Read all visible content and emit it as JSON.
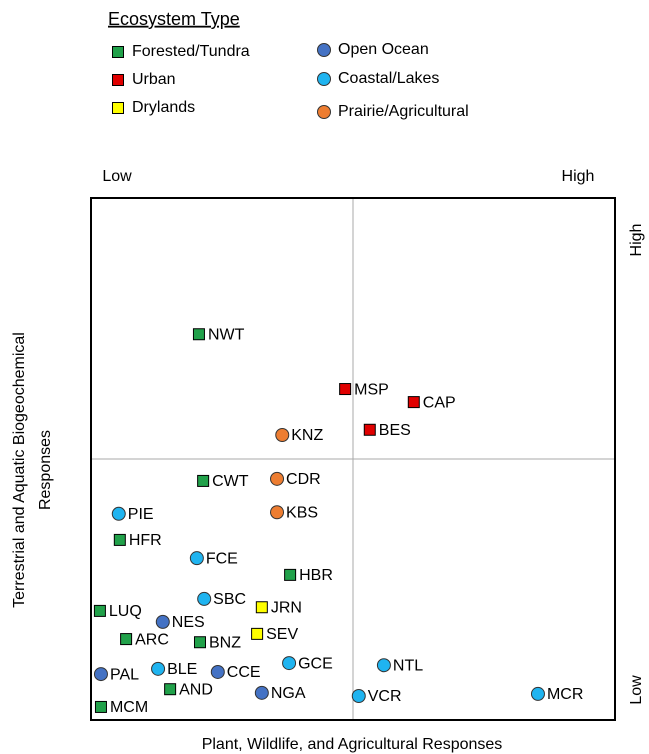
{
  "chart_data": {
    "type": "scatter",
    "legend_title": "Ecosystem Type",
    "xlabel": "Plant, Wildlife, and Agricultural Responses",
    "ylabel": [
      "Terrestrial and Aquatic Biogeochemical",
      "Responses"
    ],
    "x_low": "Low",
    "x_high": "High",
    "y_low": "Low",
    "y_high": "High",
    "xlim": [
      0,
      100
    ],
    "ylim": [
      0,
      100
    ],
    "series": [
      {
        "name": "Forested/Tundra",
        "color": "#21a14a",
        "marker": "square",
        "labels": [
          "NWT",
          "CWT",
          "HFR",
          "HBR",
          "LUQ",
          "ARC",
          "BNZ",
          "AND",
          "MCM"
        ],
        "x": [
          20.6,
          21.4,
          5.5,
          38.0,
          1.7,
          6.7,
          20.8,
          15.1,
          1.9
        ],
        "values": [
          73.9,
          45.8,
          34.5,
          27.8,
          20.9,
          15.5,
          14.9,
          5.9,
          2.5
        ]
      },
      {
        "name": "Urban",
        "color": "#e00000",
        "marker": "square",
        "labels": [
          "MSP",
          "CAP",
          "BES"
        ],
        "x": [
          48.5,
          61.6,
          53.2
        ],
        "values": [
          63.4,
          60.9,
          55.6
        ]
      },
      {
        "name": "Drylands",
        "color": "#ffff00",
        "marker": "square",
        "labels": [
          "JRN",
          "SEV"
        ],
        "x": [
          32.6,
          31.7
        ],
        "values": [
          21.6,
          16.5
        ]
      },
      {
        "name": "Open Ocean",
        "color": "#4472c4",
        "marker": "circle",
        "labels": [
          "NES",
          "PAL",
          "CCE",
          "NGA"
        ],
        "x": [
          13.7,
          1.9,
          24.2,
          32.6
        ],
        "values": [
          18.8,
          8.8,
          9.2,
          5.2
        ]
      },
      {
        "name": "Coastal/Lakes",
        "color": "#1fb4f0",
        "marker": "circle",
        "labels": [
          "PIE",
          "FCE",
          "SBC",
          "BLE",
          "GCE",
          "NTL",
          "VCR",
          "MCR"
        ],
        "x": [
          5.3,
          20.2,
          21.6,
          12.8,
          37.8,
          55.9,
          51.1,
          85.3
        ],
        "values": [
          39.5,
          31.0,
          23.2,
          9.8,
          10.9,
          10.5,
          4.6,
          5.0
        ]
      },
      {
        "name": "Prairie/Agricultural",
        "color": "#ed7d31",
        "marker": "circle",
        "labels": [
          "KNZ",
          "CDR",
          "KBS"
        ],
        "x": [
          36.5,
          35.5,
          35.5
        ],
        "values": [
          54.6,
          46.2,
          39.8
        ]
      }
    ]
  }
}
